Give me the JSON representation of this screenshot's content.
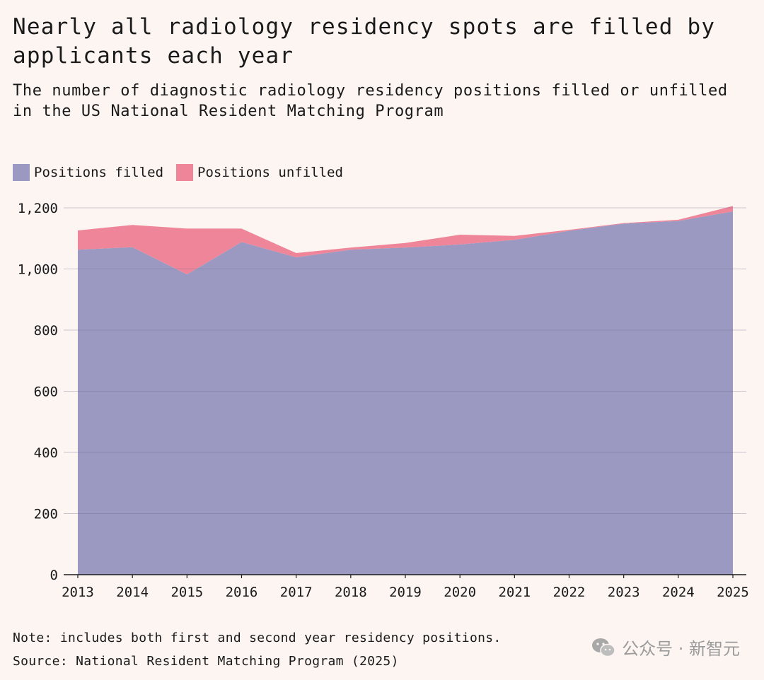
{
  "title": "Nearly all radiology residency spots are filled by applicants each year",
  "subtitle": "The number of diagnostic radiology residency positions filled or unfilled in the US National Resident Matching Program",
  "note": "Note: includes both first and second year residency positions.",
  "source": "Source: National Resident Matching Program (2025)",
  "watermark": {
    "text": "公众号 · 新智元",
    "icon": "wechat-icon"
  },
  "colors": {
    "background": "#fdf5f2",
    "filled": "#9b99c2",
    "unfilled": "#ee8599",
    "grid": "#d9cfcf",
    "text": "#1a1a1a"
  },
  "chart_data": {
    "type": "area",
    "stacked": true,
    "title": "Nearly all radiology residency spots are filled by applicants each year",
    "subtitle": "The number of diagnostic radiology residency positions filled or unfilled in the US National Resident Matching Program",
    "x": [
      "2013",
      "2014",
      "2015",
      "2016",
      "2017",
      "2018",
      "2019",
      "2020",
      "2021",
      "2022",
      "2023",
      "2024",
      "2025"
    ],
    "series": [
      {
        "name": "Positions filled",
        "color": "#9b99c2",
        "values": [
          1063,
          1071,
          982,
          1088,
          1038,
          1063,
          1070,
          1080,
          1095,
          1125,
          1148,
          1157,
          1188
        ]
      },
      {
        "name": "Positions unfilled",
        "color": "#ee8599",
        "values": [
          63,
          73,
          150,
          44,
          14,
          7,
          15,
          32,
          13,
          3,
          2,
          4,
          18
        ]
      }
    ],
    "yticks": [
      "0",
      "200",
      "400",
      "600",
      "800",
      "1,000",
      "1,200"
    ],
    "ylim": [
      0,
      1200
    ],
    "grid": true,
    "legend_position": "top-left"
  }
}
